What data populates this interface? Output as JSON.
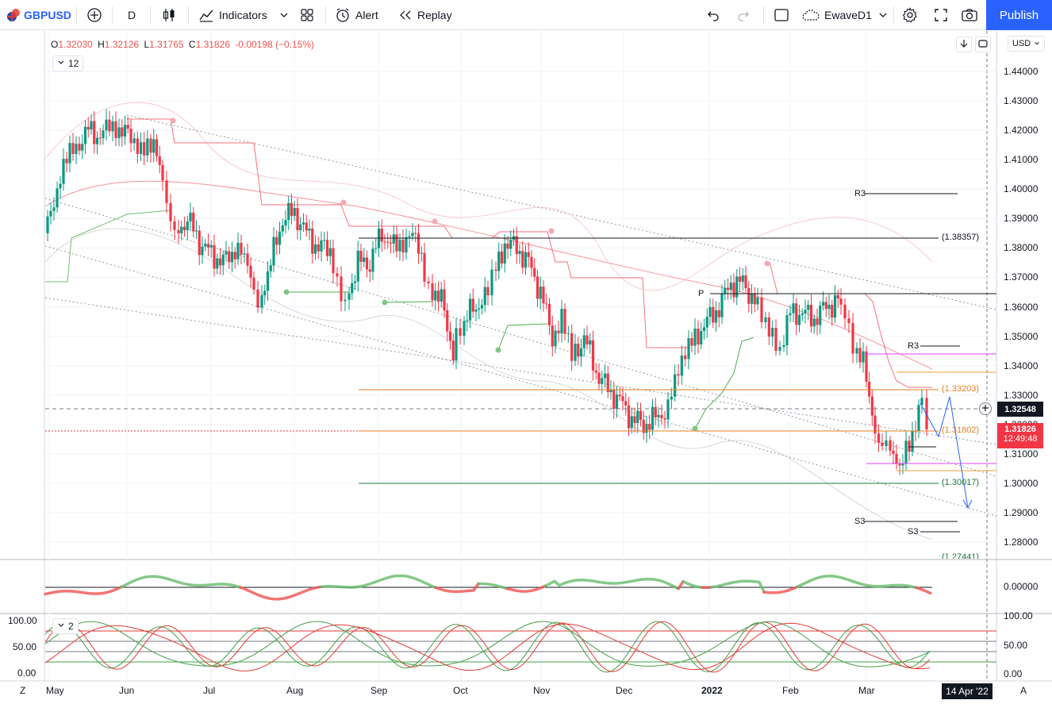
{
  "toolbar": {
    "symbol": "GBPUSD",
    "interval": "D",
    "indicators_label": "Indicators",
    "alert_label": "Alert",
    "replay_label": "Replay",
    "layout_name": "EwaveD1",
    "publish_label": "Publish"
  },
  "legend": {
    "o_label": "O",
    "o_value": "1.32030",
    "h_label": "H",
    "h_value": "1.32126",
    "l_label": "L",
    "l_value": "1.31765",
    "c_label": "C",
    "c_value": "1.31826",
    "change": "-0.00198 (−0.15%)",
    "indicator_count": "12",
    "osc_count": "2"
  },
  "currency": "USD",
  "price_axis": [
    "1.44000",
    "1.43000",
    "1.42000",
    "1.41000",
    "1.40000",
    "1.39000",
    "1.38000",
    "1.37000",
    "1.36000",
    "1.35000",
    "1.34000",
    "1.33000",
    "1.32000",
    "1.31000",
    "1.30000",
    "1.29000",
    "1.28000"
  ],
  "price_tags": {
    "crosshair": "1.32548",
    "last": "1.31826",
    "countdown": "12:49:48"
  },
  "level_labels": {
    "l1": "(1.38357)",
    "l2": "(1.33203)",
    "l3": "(1.31802)",
    "l4": "(1.30017)",
    "l5": "(1.27441)",
    "r3a": "R3",
    "r3b": "R3",
    "s3a": "S3",
    "s3b": "S3",
    "p": "P"
  },
  "osc1_axis": [
    "0.00000"
  ],
  "osc2_axis": [
    "100.00",
    "50.00",
    "0.00"
  ],
  "time_axis": [
    "May",
    "Jun",
    "Jul",
    "Aug",
    "Sep",
    "Oct",
    "Nov",
    "Dec",
    "2022",
    "Feb",
    "Mar"
  ],
  "date_tag": "14 Apr '22",
  "bottom": {
    "z": "Z",
    "a": "A"
  },
  "colors": {
    "up": "#089981",
    "down": "#f23645",
    "accent": "#2962ff"
  }
}
